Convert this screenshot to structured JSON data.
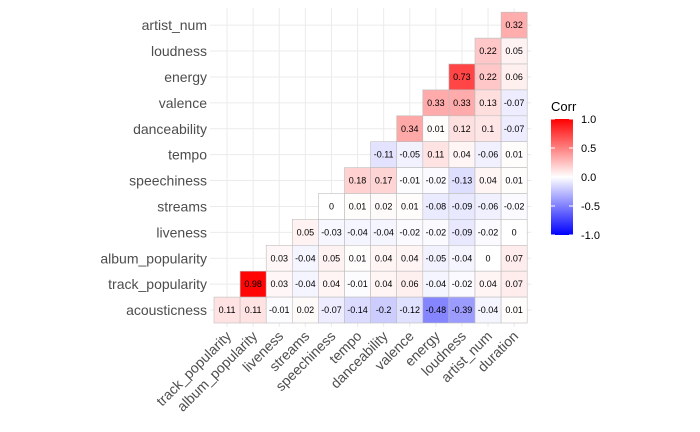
{
  "chart_data": {
    "type": "heatmap",
    "title": "",
    "xlabel": "",
    "ylabel": "",
    "x_categories": [
      "track_popularity",
      "album_popularity",
      "liveness",
      "streams",
      "speechiness",
      "tempo",
      "danceability",
      "valence",
      "energy",
      "loudness",
      "artist_num",
      "duration"
    ],
    "y_categories": [
      "acousticness",
      "track_popularity",
      "album_popularity",
      "liveness",
      "streams",
      "speechiness",
      "tempo",
      "danceability",
      "valence",
      "energy",
      "loudness",
      "artist_num"
    ],
    "cells": [
      {
        "y": "artist_num",
        "x": "duration",
        "v": 0.32
      },
      {
        "y": "loudness",
        "x": "artist_num",
        "v": 0.22
      },
      {
        "y": "loudness",
        "x": "duration",
        "v": 0.05
      },
      {
        "y": "energy",
        "x": "loudness",
        "v": 0.73
      },
      {
        "y": "energy",
        "x": "artist_num",
        "v": 0.22
      },
      {
        "y": "energy",
        "x": "duration",
        "v": 0.06
      },
      {
        "y": "valence",
        "x": "energy",
        "v": 0.33
      },
      {
        "y": "valence",
        "x": "loudness",
        "v": 0.33
      },
      {
        "y": "valence",
        "x": "artist_num",
        "v": 0.13
      },
      {
        "y": "valence",
        "x": "duration",
        "v": -0.07
      },
      {
        "y": "danceability",
        "x": "valence",
        "v": 0.34
      },
      {
        "y": "danceability",
        "x": "energy",
        "v": 0.01
      },
      {
        "y": "danceability",
        "x": "loudness",
        "v": 0.12
      },
      {
        "y": "danceability",
        "x": "artist_num",
        "v": 0.1
      },
      {
        "y": "danceability",
        "x": "duration",
        "v": -0.07
      },
      {
        "y": "tempo",
        "x": "danceability",
        "v": -0.11
      },
      {
        "y": "tempo",
        "x": "valence",
        "v": -0.05
      },
      {
        "y": "tempo",
        "x": "energy",
        "v": 0.11
      },
      {
        "y": "tempo",
        "x": "loudness",
        "v": 0.04
      },
      {
        "y": "tempo",
        "x": "artist_num",
        "v": -0.06
      },
      {
        "y": "tempo",
        "x": "duration",
        "v": 0.01
      },
      {
        "y": "speechiness",
        "x": "tempo",
        "v": 0.18
      },
      {
        "y": "speechiness",
        "x": "danceability",
        "v": 0.17
      },
      {
        "y": "speechiness",
        "x": "valence",
        "v": -0.01
      },
      {
        "y": "speechiness",
        "x": "energy",
        "v": -0.02
      },
      {
        "y": "speechiness",
        "x": "loudness",
        "v": -0.13
      },
      {
        "y": "speechiness",
        "x": "artist_num",
        "v": 0.04
      },
      {
        "y": "speechiness",
        "x": "duration",
        "v": 0.01
      },
      {
        "y": "streams",
        "x": "speechiness",
        "v": 0
      },
      {
        "y": "streams",
        "x": "tempo",
        "v": 0.01
      },
      {
        "y": "streams",
        "x": "danceability",
        "v": 0.02
      },
      {
        "y": "streams",
        "x": "valence",
        "v": 0.01
      },
      {
        "y": "streams",
        "x": "energy",
        "v": -0.08
      },
      {
        "y": "streams",
        "x": "loudness",
        "v": -0.09
      },
      {
        "y": "streams",
        "x": "artist_num",
        "v": -0.06
      },
      {
        "y": "streams",
        "x": "duration",
        "v": -0.02
      },
      {
        "y": "liveness",
        "x": "streams",
        "v": 0.05
      },
      {
        "y": "liveness",
        "x": "speechiness",
        "v": -0.03
      },
      {
        "y": "liveness",
        "x": "tempo",
        "v": -0.04
      },
      {
        "y": "liveness",
        "x": "danceability",
        "v": -0.04
      },
      {
        "y": "liveness",
        "x": "valence",
        "v": -0.02
      },
      {
        "y": "liveness",
        "x": "energy",
        "v": -0.02
      },
      {
        "y": "liveness",
        "x": "loudness",
        "v": -0.09
      },
      {
        "y": "liveness",
        "x": "artist_num",
        "v": -0.02
      },
      {
        "y": "liveness",
        "x": "duration",
        "v": 0
      },
      {
        "y": "album_popularity",
        "x": "liveness",
        "v": 0.03
      },
      {
        "y": "album_popularity",
        "x": "streams",
        "v": -0.04
      },
      {
        "y": "album_popularity",
        "x": "speechiness",
        "v": 0.05
      },
      {
        "y": "album_popularity",
        "x": "tempo",
        "v": 0.01
      },
      {
        "y": "album_popularity",
        "x": "danceability",
        "v": 0.04
      },
      {
        "y": "album_popularity",
        "x": "valence",
        "v": 0.04
      },
      {
        "y": "album_popularity",
        "x": "energy",
        "v": -0.05
      },
      {
        "y": "album_popularity",
        "x": "loudness",
        "v": -0.04
      },
      {
        "y": "album_popularity",
        "x": "artist_num",
        "v": 0
      },
      {
        "y": "album_popularity",
        "x": "duration",
        "v": 0.07
      },
      {
        "y": "track_popularity",
        "x": "album_popularity",
        "v": 0.98
      },
      {
        "y": "track_popularity",
        "x": "liveness",
        "v": 0.03
      },
      {
        "y": "track_popularity",
        "x": "streams",
        "v": -0.04
      },
      {
        "y": "track_popularity",
        "x": "speechiness",
        "v": 0.04
      },
      {
        "y": "track_popularity",
        "x": "tempo",
        "v": -0.01
      },
      {
        "y": "track_popularity",
        "x": "danceability",
        "v": 0.04
      },
      {
        "y": "track_popularity",
        "x": "valence",
        "v": 0.06
      },
      {
        "y": "track_popularity",
        "x": "energy",
        "v": -0.04
      },
      {
        "y": "track_popularity",
        "x": "loudness",
        "v": -0.02
      },
      {
        "y": "track_popularity",
        "x": "artist_num",
        "v": 0.04
      },
      {
        "y": "track_popularity",
        "x": "duration",
        "v": 0.07
      },
      {
        "y": "acousticness",
        "x": "track_popularity",
        "v": 0.11
      },
      {
        "y": "acousticness",
        "x": "album_popularity",
        "v": 0.11
      },
      {
        "y": "acousticness",
        "x": "liveness",
        "v": -0.01
      },
      {
        "y": "acousticness",
        "x": "streams",
        "v": 0.02
      },
      {
        "y": "acousticness",
        "x": "speechiness",
        "v": -0.07
      },
      {
        "y": "acousticness",
        "x": "tempo",
        "v": -0.14
      },
      {
        "y": "acousticness",
        "x": "danceability",
        "v": -0.2
      },
      {
        "y": "acousticness",
        "x": "valence",
        "v": -0.12
      },
      {
        "y": "acousticness",
        "x": "energy",
        "v": -0.48
      },
      {
        "y": "acousticness",
        "x": "loudness",
        "v": -0.39
      },
      {
        "y": "acousticness",
        "x": "artist_num",
        "v": -0.04
      },
      {
        "y": "acousticness",
        "x": "duration",
        "v": 0.01
      }
    ],
    "color_scale": {
      "low": "#0000ff",
      "mid": "#ffffff",
      "high": "#ff0000",
      "limits": [
        -1,
        1
      ]
    },
    "legend": {
      "title": "Corr",
      "ticks": [
        "1.0",
        "0.5",
        "0.0",
        "-0.5",
        "-1.0"
      ],
      "placement": "right"
    },
    "grid": true
  }
}
